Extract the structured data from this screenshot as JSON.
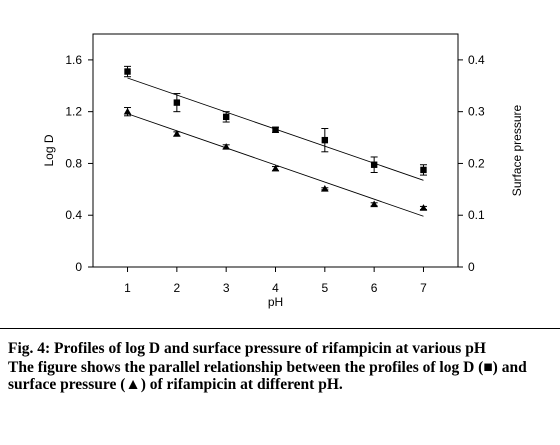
{
  "caption": {
    "title": "Fig. 4: Profiles of log D and surface pressure of rifampicin at various pH",
    "description": "The figure shows the parallel relationship between the profiles of log D (■) and surface pressure (▲) of rifampicin at different pH."
  },
  "chart_data": {
    "type": "scatter",
    "title": "",
    "xlabel": "pH",
    "ylabel": "Log D",
    "y2label": "Surface pressure",
    "xlim": [
      0.3,
      7.7
    ],
    "ylim": [
      0,
      1.8
    ],
    "y2lim": [
      0,
      0.45
    ],
    "x_ticks": [
      1,
      2,
      3,
      4,
      5,
      6,
      7
    ],
    "y_ticks": [
      0,
      0.4,
      0.8,
      1.2,
      1.6
    ],
    "y2_ticks": [
      0,
      0.1,
      0.2,
      0.3,
      0.4
    ],
    "y_tick_labels": [
      "0",
      "0.4",
      "0.8",
      "1.2",
      "1.6"
    ],
    "y2_tick_labels": [
      "0",
      "0.1",
      "0.2",
      "0.3",
      "0.4"
    ],
    "grid": false,
    "legend": "none",
    "series": [
      {
        "marker": "square",
        "axis": "left",
        "x": [
          1,
          2,
          3,
          4,
          5,
          6,
          7
        ],
        "y": [
          1.51,
          1.27,
          1.16,
          1.06,
          0.98,
          0.79,
          0.75
        ],
        "error": [
          0.04,
          0.07,
          0.04,
          0.02,
          0.09,
          0.06,
          0.04
        ],
        "trendline": {
          "x": [
            1,
            7
          ],
          "y": [
            1.46,
            0.67
          ]
        }
      },
      {
        "marker": "triangle",
        "axis": "right",
        "x": [
          1,
          2,
          3,
          4,
          5,
          6,
          7
        ],
        "y": [
          0.3,
          0.257,
          0.232,
          0.19,
          0.151,
          0.121,
          0.114
        ],
        "error": [
          0.008,
          0.004,
          0.004,
          0.004,
          0.002,
          0.003,
          0.003
        ],
        "trendline": {
          "x": [
            1,
            7
          ],
          "y": [
            0.296,
            0.098
          ]
        }
      }
    ]
  }
}
